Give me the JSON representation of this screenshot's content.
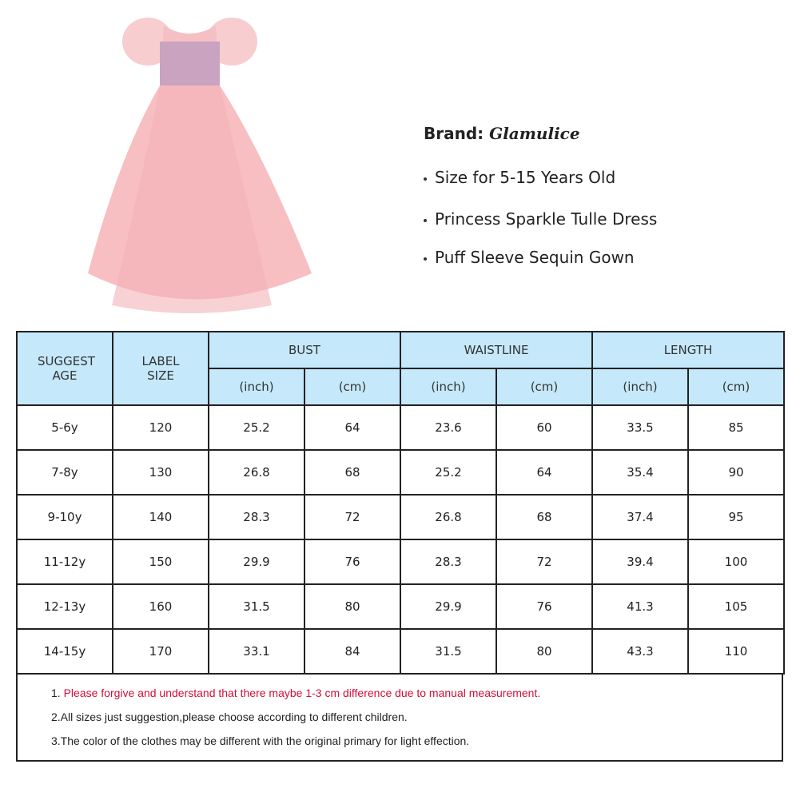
{
  "product": {
    "brand_label": "Brand:",
    "brand_name": "Glamulice",
    "features": [
      "Size for 5-15 Years Old",
      "Princess Sparkle Tulle Dress",
      "Puff Sleeve Sequin Gown"
    ]
  },
  "size_chart": {
    "headers": {
      "age": "SUGGEST AGE",
      "label_size": "LABEL SIZE",
      "bust": "BUST",
      "waistline": "WAISTLINE",
      "length": "LENGTH",
      "inch": "(inch)",
      "cm": "(cm)"
    },
    "rows": [
      [
        "5-6y",
        "120",
        "25.2",
        "64",
        "23.6",
        "60",
        "33.5",
        "85"
      ],
      [
        "7-8y",
        "130",
        "26.8",
        "68",
        "25.2",
        "64",
        "35.4",
        "90"
      ],
      [
        "9-10y",
        "140",
        "28.3",
        "72",
        "26.8",
        "68",
        "37.4",
        "95"
      ],
      [
        "11-12y",
        "150",
        "29.9",
        "76",
        "28.3",
        "72",
        "39.4",
        "100"
      ],
      [
        "12-13y",
        "160",
        "31.5",
        "80",
        "29.9",
        "76",
        "41.3",
        "105"
      ],
      [
        "14-15y",
        "170",
        "33.1",
        "84",
        "31.5",
        "80",
        "43.3",
        "110"
      ]
    ],
    "header_color": "#c5e8fb"
  },
  "notes": {
    "n1_prefix": "1. ",
    "n1_text": "Please forgive and understand that there maybe 1-3 cm difference due to manual measurement.",
    "n2": "2.All sizes just suggestion,please choose according to different children.",
    "n3": "3.The color of the clothes may be different with the original primary for light effection."
  }
}
